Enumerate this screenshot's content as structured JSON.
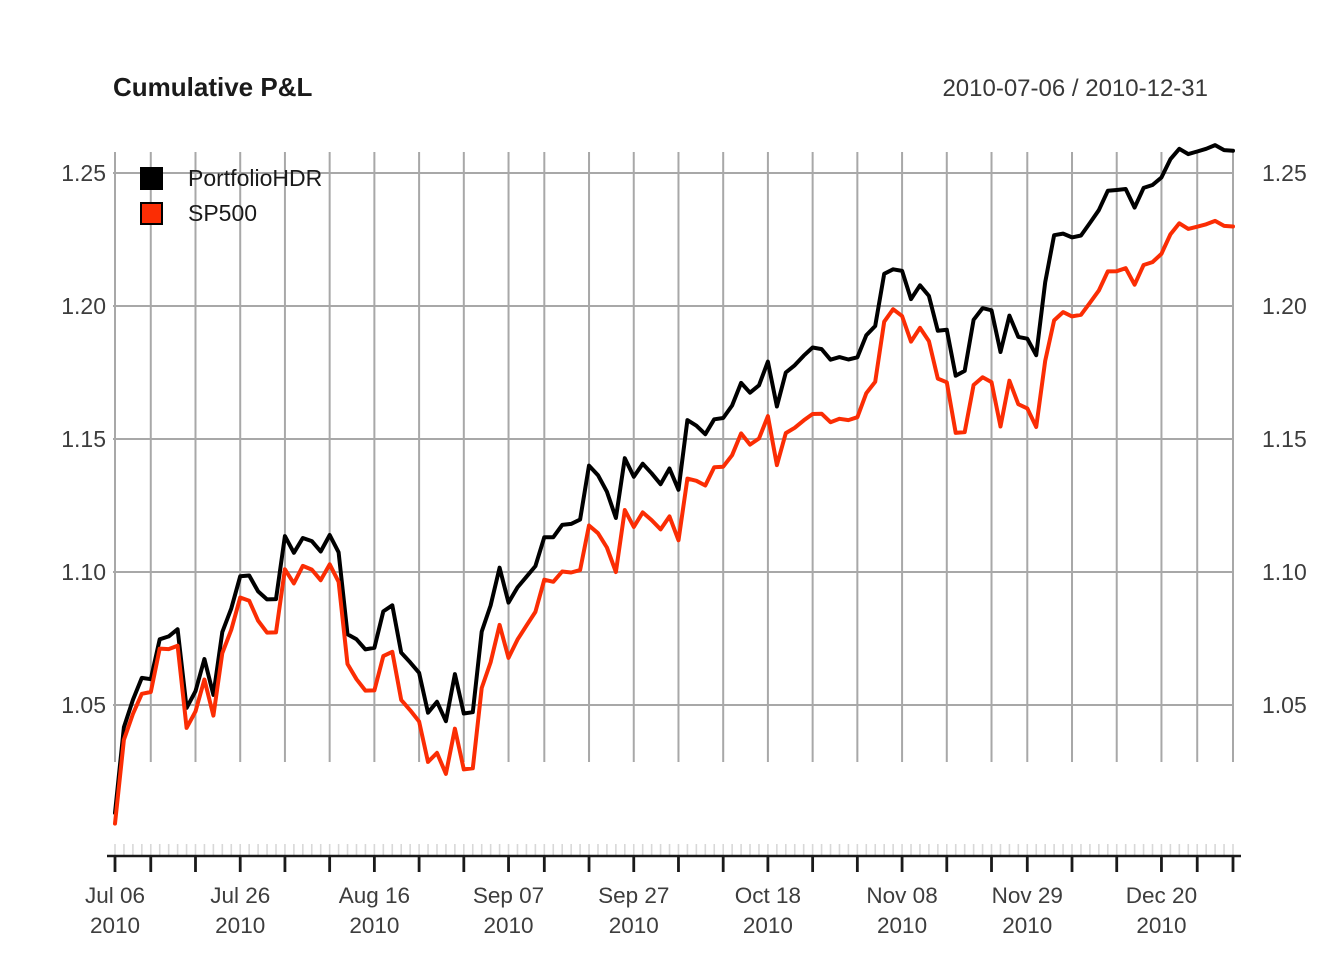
{
  "header": {
    "title": "Cumulative P&L",
    "date_range": "2010-07-06 / 2010-12-31"
  },
  "legend": {
    "position": "topleft",
    "items": [
      {
        "label": "PortfolioHDR",
        "color": "#000000"
      },
      {
        "label": "SP500",
        "color": "#FB2D04"
      }
    ]
  },
  "colors": {
    "grid": "#a8a8a8",
    "minor_tick": "#d8d8d8",
    "axis": "#1a1a1a",
    "tick_label": "#3d3d3d"
  },
  "chart_data": {
    "type": "line",
    "title": "Cumulative P&L",
    "subtitle": "2010-07-06 / 2010-12-31",
    "xlabel": "",
    "ylabel": "",
    "grid": "on",
    "legend_position": "topleft",
    "ylim": [
      1.0,
      1.265
    ],
    "y_ticks": [
      "1.05",
      "1.10",
      "1.15",
      "1.20",
      "1.25"
    ],
    "x": [
      "2010-07-06",
      "2010-07-07",
      "2010-07-08",
      "2010-07-09",
      "2010-07-12",
      "2010-07-13",
      "2010-07-14",
      "2010-07-15",
      "2010-07-16",
      "2010-07-19",
      "2010-07-20",
      "2010-07-21",
      "2010-07-22",
      "2010-07-23",
      "2010-07-26",
      "2010-07-27",
      "2010-07-28",
      "2010-07-29",
      "2010-07-30",
      "2010-08-02",
      "2010-08-03",
      "2010-08-04",
      "2010-08-05",
      "2010-08-06",
      "2010-08-09",
      "2010-08-10",
      "2010-08-11",
      "2010-08-12",
      "2010-08-13",
      "2010-08-16",
      "2010-08-17",
      "2010-08-18",
      "2010-08-19",
      "2010-08-20",
      "2010-08-23",
      "2010-08-24",
      "2010-08-25",
      "2010-08-26",
      "2010-08-27",
      "2010-08-30",
      "2010-08-31",
      "2010-09-01",
      "2010-09-02",
      "2010-09-03",
      "2010-09-07",
      "2010-09-08",
      "2010-09-09",
      "2010-09-10",
      "2010-09-13",
      "2010-09-14",
      "2010-09-15",
      "2010-09-16",
      "2010-09-17",
      "2010-09-20",
      "2010-09-21",
      "2010-09-22",
      "2010-09-23",
      "2010-09-24",
      "2010-09-27",
      "2010-09-28",
      "2010-09-29",
      "2010-09-30",
      "2010-10-01",
      "2010-10-04",
      "2010-10-05",
      "2010-10-06",
      "2010-10-07",
      "2010-10-08",
      "2010-10-11",
      "2010-10-12",
      "2010-10-13",
      "2010-10-14",
      "2010-10-15",
      "2010-10-18",
      "2010-10-19",
      "2010-10-20",
      "2010-10-21",
      "2010-10-22",
      "2010-10-25",
      "2010-10-26",
      "2010-10-27",
      "2010-10-28",
      "2010-10-29",
      "2010-11-01",
      "2010-11-02",
      "2010-11-03",
      "2010-11-04",
      "2010-11-05",
      "2010-11-08",
      "2010-11-09",
      "2010-11-10",
      "2010-11-11",
      "2010-11-12",
      "2010-11-15",
      "2010-11-16",
      "2010-11-17",
      "2010-11-18",
      "2010-11-19",
      "2010-11-22",
      "2010-11-23",
      "2010-11-24",
      "2010-11-26",
      "2010-11-29",
      "2010-11-30",
      "2010-12-01",
      "2010-12-02",
      "2010-12-03",
      "2010-12-06",
      "2010-12-07",
      "2010-12-08",
      "2010-12-09",
      "2010-12-10",
      "2010-12-13",
      "2010-12-14",
      "2010-12-15",
      "2010-12-16",
      "2010-12-17",
      "2010-12-20",
      "2010-12-21",
      "2010-12-22",
      "2010-12-23",
      "2010-12-27",
      "2010-12-28",
      "2010-12-29",
      "2010-12-30",
      "2010-12-31"
    ],
    "series": [
      {
        "name": "PortfolioHDR",
        "color": "#000000",
        "values": [
          1.0094,
          1.0416,
          1.0519,
          1.0602,
          1.0597,
          1.0747,
          1.0758,
          1.0785,
          1.0489,
          1.0552,
          1.0673,
          1.0538,
          1.0774,
          1.0863,
          1.0984,
          1.0987,
          1.0927,
          1.0897,
          1.0898,
          1.1135,
          1.1072,
          1.1128,
          1.1116,
          1.1077,
          1.1139,
          1.1074,
          1.0766,
          1.0747,
          1.0709,
          1.0715,
          1.0852,
          1.0875,
          1.0697,
          1.066,
          1.0621,
          1.0471,
          1.0512,
          1.0439,
          1.0616,
          1.0468,
          1.0473,
          1.0776,
          1.0874,
          1.1016,
          1.0885,
          1.0942,
          1.0982,
          1.1022,
          1.1131,
          1.1131,
          1.1177,
          1.1181,
          1.1197,
          1.14,
          1.1364,
          1.1302,
          1.1203,
          1.1428,
          1.1358,
          1.1407,
          1.1371,
          1.133,
          1.1389,
          1.1309,
          1.1571,
          1.155,
          1.1518,
          1.1574,
          1.1579,
          1.1626,
          1.1711,
          1.1674,
          1.1702,
          1.1791,
          1.1622,
          1.175,
          1.1777,
          1.1813,
          1.1844,
          1.1838,
          1.1798,
          1.1808,
          1.1799,
          1.1807,
          1.189,
          1.1925,
          1.2121,
          1.2138,
          1.2132,
          1.2026,
          1.2078,
          1.2038,
          1.1907,
          1.1911,
          1.1738,
          1.1756,
          1.1948,
          1.1992,
          1.1984,
          1.1827,
          1.1964,
          1.1884,
          1.1877,
          1.1815,
          1.2089,
          1.2266,
          1.2272,
          1.2258,
          1.2265,
          1.2312,
          1.236,
          1.2433,
          1.2436,
          1.244,
          1.237,
          1.2444,
          1.2455,
          1.2483,
          1.2552,
          1.2591,
          1.2571,
          1.2581,
          1.2591,
          1.2605,
          1.2586,
          1.2584
        ]
      },
      {
        "name": "SP500",
        "color": "#FB2D04",
        "values": [
          1.0054,
          1.0369,
          1.0466,
          1.0542,
          1.0549,
          1.0712,
          1.071,
          1.0723,
          1.0414,
          1.0476,
          1.0596,
          1.046,
          1.0695,
          1.0783,
          1.0904,
          1.0892,
          1.0817,
          1.0772,
          1.0773,
          1.101,
          1.0957,
          1.1023,
          1.1009,
          1.0969,
          1.1029,
          1.0963,
          1.0654,
          1.0597,
          1.0554,
          1.0555,
          1.0684,
          1.07,
          1.0519,
          1.048,
          1.0438,
          1.0286,
          1.032,
          1.0241,
          1.0411,
          1.0258,
          1.0262,
          1.0564,
          1.066,
          1.0801,
          1.0677,
          1.0746,
          1.0798,
          1.085,
          1.0971,
          1.0963,
          1.1002,
          1.0998,
          1.1007,
          1.1175,
          1.1146,
          1.1092,
          1.1,
          1.1233,
          1.1169,
          1.1224,
          1.1195,
          1.116,
          1.1209,
          1.1119,
          1.1351,
          1.1343,
          1.1325,
          1.1394,
          1.1396,
          1.1439,
          1.1521,
          1.1479,
          1.1502,
          1.1586,
          1.1402,
          1.1522,
          1.1542,
          1.157,
          1.1594,
          1.1595,
          1.1563,
          1.1576,
          1.1571,
          1.1582,
          1.1672,
          1.1715,
          1.1941,
          1.1988,
          1.1962,
          1.1866,
          1.1918,
          1.1868,
          1.1727,
          1.1713,
          1.1523,
          1.1526,
          1.1703,
          1.1732,
          1.1714,
          1.1547,
          1.1719,
          1.1631,
          1.1615,
          1.1545,
          1.1794,
          1.1946,
          1.1977,
          1.1961,
          1.1967,
          1.2012,
          1.2058,
          1.213,
          1.2131,
          1.2142,
          1.208,
          1.2154,
          1.2165,
          1.2196,
          1.2269,
          1.2311,
          1.229,
          1.2298,
          1.2307,
          1.232,
          1.2301,
          1.2299
        ]
      }
    ],
    "week_grid_indices": [
      0,
      4,
      9,
      14,
      19,
      24,
      29,
      34,
      39,
      44,
      48,
      53,
      58,
      63,
      68,
      73,
      78,
      83,
      88,
      93,
      98,
      102,
      107,
      112,
      117,
      121,
      125
    ],
    "x_tick_labels": [
      {
        "index": 0,
        "line1": "Jul 06",
        "line2": "2010"
      },
      {
        "index": 14,
        "line1": "Jul 26",
        "line2": "2010"
      },
      {
        "index": 29,
        "line1": "Aug 16",
        "line2": "2010"
      },
      {
        "index": 44,
        "line1": "Sep 07",
        "line2": "2010"
      },
      {
        "index": 58,
        "line1": "Sep 27",
        "line2": "2010"
      },
      {
        "index": 73,
        "line1": "Oct 18",
        "line2": "2010"
      },
      {
        "index": 88,
        "line1": "Nov 08",
        "line2": "2010"
      },
      {
        "index": 102,
        "line1": "Nov 29",
        "line2": "2010"
      },
      {
        "index": 117,
        "line1": "Dec 20",
        "line2": "2010"
      }
    ]
  }
}
